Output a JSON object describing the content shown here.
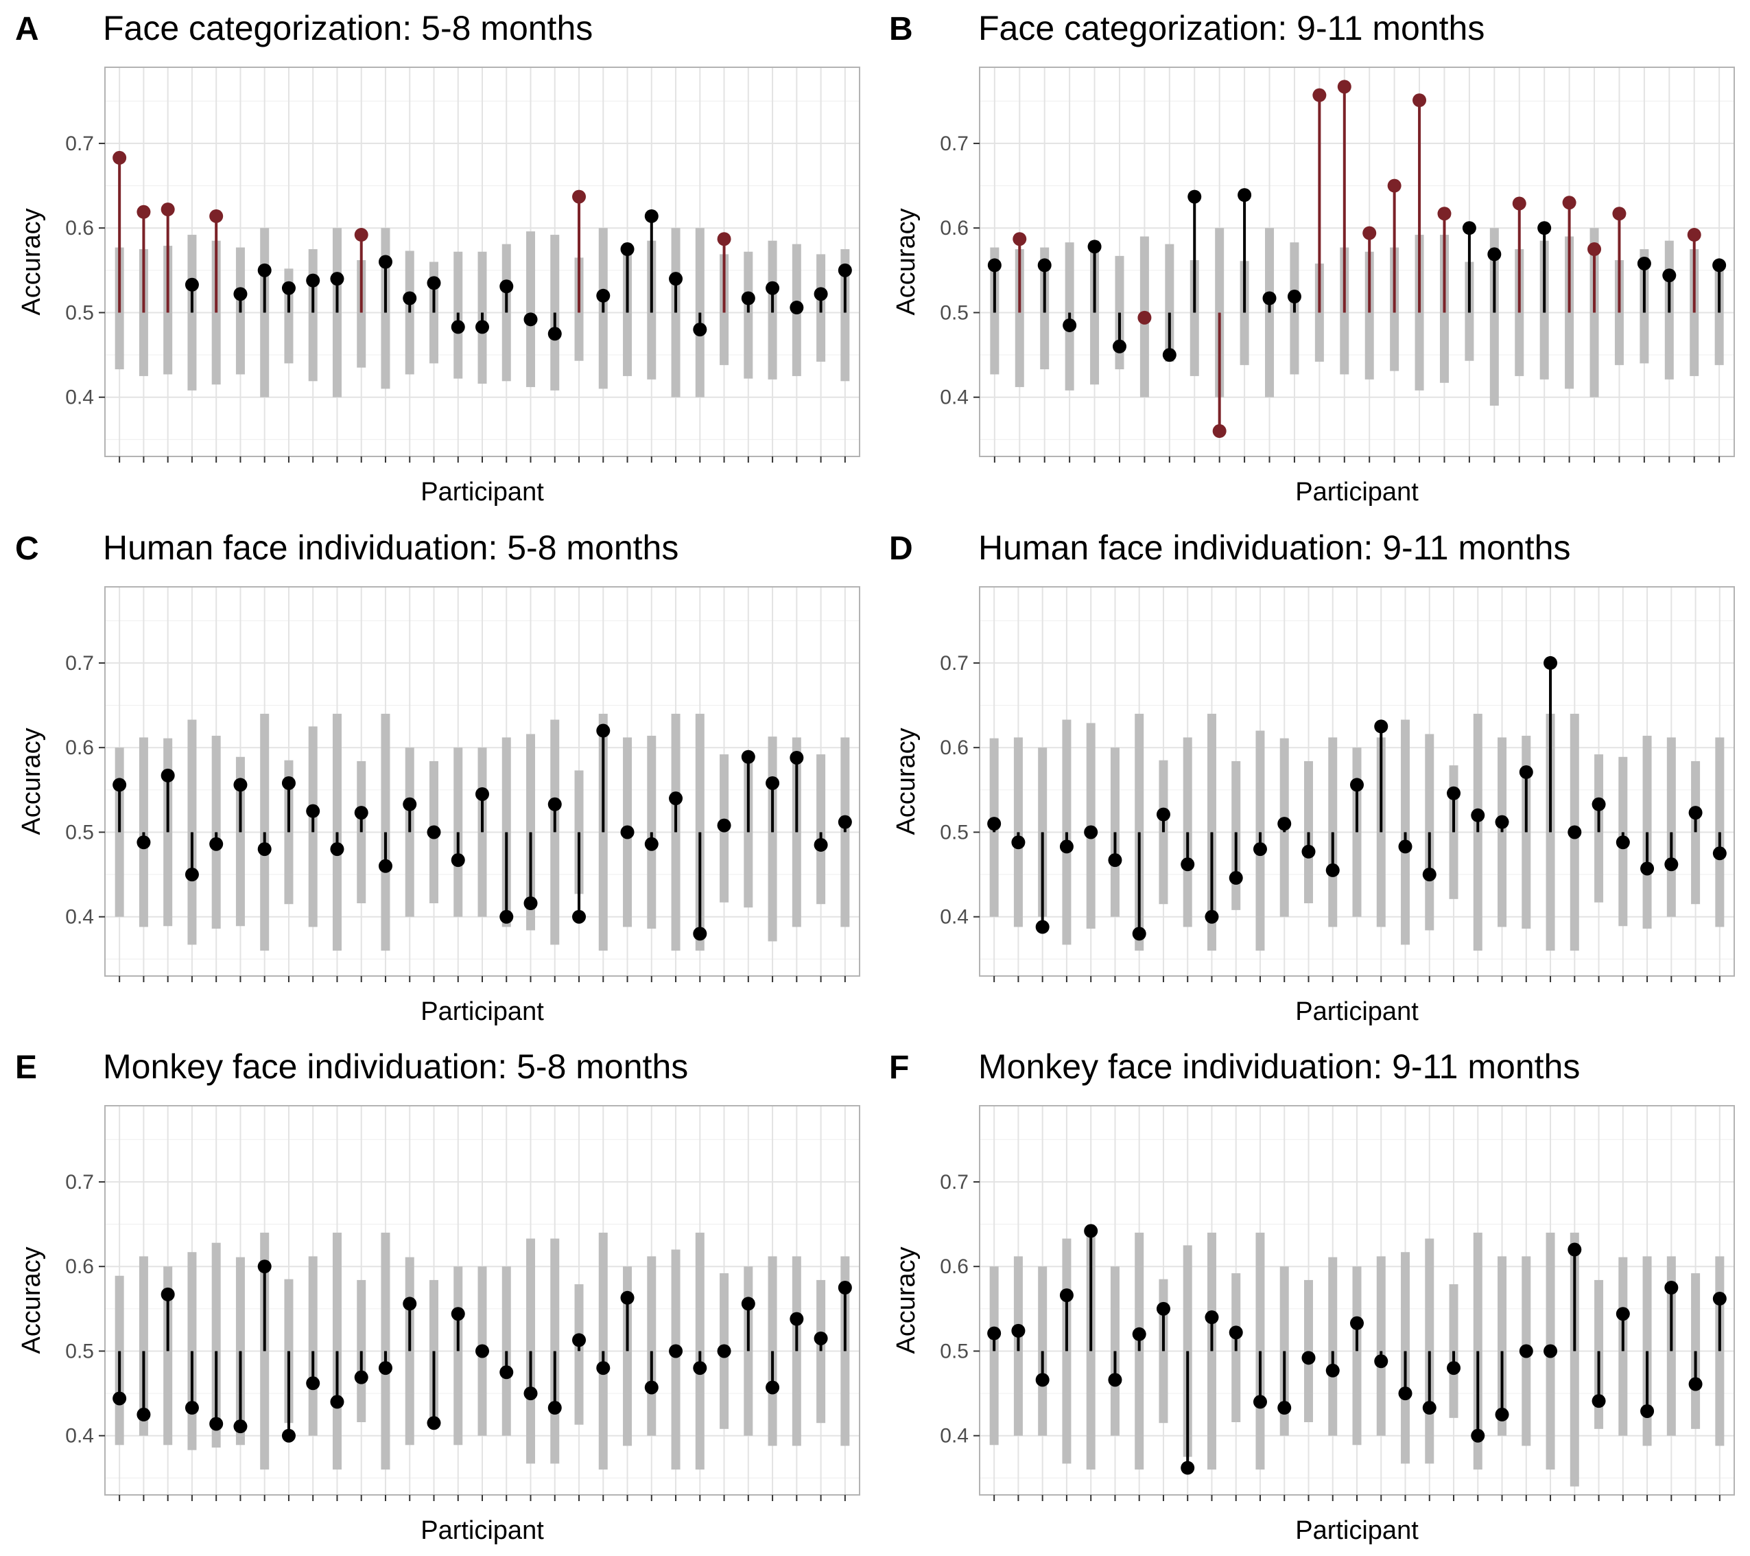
{
  "chart_data": [
    {
      "panel": "A",
      "type": "lollipop",
      "title": "Face categorization: 5-8 months",
      "xlabel": "Participant",
      "ylabel": "Accuracy",
      "baseline": 0.5,
      "ylim": [
        0.33,
        0.79
      ],
      "yticks": [
        0.4,
        0.5,
        0.6,
        0.7
      ],
      "colors": {
        "significant": "#7b2228",
        "non_significant": "#000000",
        "interval": "#bdbdbd"
      },
      "values": [
        0.683,
        0.619,
        0.622,
        0.533,
        0.614,
        0.522,
        0.55,
        0.529,
        0.538,
        0.54,
        0.592,
        0.56,
        0.517,
        0.535,
        0.483,
        0.483,
        0.531,
        0.492,
        0.475,
        0.637,
        0.52,
        0.575,
        0.614,
        0.54,
        0.48,
        0.587,
        0.517,
        0.529,
        0.506,
        0.522,
        0.55
      ],
      "ci_low": [
        0.433,
        0.425,
        0.427,
        0.408,
        0.415,
        0.427,
        0.4,
        0.44,
        0.419,
        0.4,
        0.435,
        0.41,
        0.427,
        0.44,
        0.422,
        0.416,
        0.419,
        0.412,
        0.408,
        0.443,
        0.41,
        0.425,
        0.421,
        0.4,
        0.4,
        0.438,
        0.422,
        0.421,
        0.425,
        0.442,
        0.419
      ],
      "ci_high": [
        0.577,
        0.575,
        0.579,
        0.592,
        0.585,
        0.577,
        0.6,
        0.552,
        0.575,
        0.6,
        0.562,
        0.6,
        0.573,
        0.56,
        0.572,
        0.572,
        0.581,
        0.596,
        0.592,
        0.565,
        0.6,
        0.575,
        0.585,
        0.6,
        0.6,
        0.569,
        0.572,
        0.585,
        0.581,
        0.569,
        0.575
      ],
      "significant": [
        true,
        true,
        true,
        false,
        true,
        false,
        false,
        false,
        false,
        false,
        true,
        false,
        false,
        false,
        false,
        false,
        false,
        false,
        false,
        true,
        false,
        false,
        false,
        false,
        false,
        true,
        false,
        false,
        false,
        false,
        false
      ]
    },
    {
      "panel": "B",
      "type": "lollipop",
      "title": "Face categorization: 9-11 months",
      "xlabel": "Participant",
      "ylabel": "Accuracy",
      "baseline": 0.5,
      "ylim": [
        0.33,
        0.79
      ],
      "yticks": [
        0.4,
        0.5,
        0.6,
        0.7
      ],
      "colors": {
        "significant": "#7b2228",
        "non_significant": "#000000",
        "interval": "#bdbdbd"
      },
      "values": [
        0.556,
        0.587,
        0.556,
        0.485,
        0.578,
        0.46,
        0.494,
        0.45,
        0.637,
        0.36,
        0.639,
        0.517,
        0.519,
        0.757,
        0.767,
        0.594,
        0.65,
        0.751,
        0.617,
        0.6,
        0.569,
        0.629,
        0.6,
        0.63,
        0.575,
        0.617,
        0.558,
        0.544,
        0.592,
        0.556
      ],
      "ci_low": [
        0.427,
        0.412,
        0.433,
        0.408,
        0.415,
        0.433,
        0.4,
        0.442,
        0.425,
        0.4,
        0.438,
        0.4,
        0.427,
        0.442,
        0.427,
        0.421,
        0.431,
        0.408,
        0.417,
        0.443,
        0.39,
        0.425,
        0.421,
        0.41,
        0.4,
        0.438,
        0.44,
        0.421,
        0.425,
        0.438
      ],
      "ci_high": [
        0.577,
        0.575,
        0.577,
        0.583,
        0.585,
        0.567,
        0.59,
        0.581,
        0.562,
        0.6,
        0.561,
        0.6,
        0.583,
        0.558,
        0.577,
        0.572,
        0.577,
        0.592,
        0.592,
        0.56,
        0.6,
        0.575,
        0.585,
        0.59,
        0.6,
        0.562,
        0.575,
        0.585,
        0.575,
        0.562
      ],
      "significant": [
        false,
        true,
        false,
        false,
        false,
        false,
        true,
        false,
        false,
        true,
        false,
        false,
        false,
        true,
        true,
        true,
        true,
        true,
        true,
        false,
        false,
        true,
        false,
        true,
        true,
        true,
        false,
        false,
        true,
        false
      ]
    },
    {
      "panel": "C",
      "type": "lollipop",
      "title": "Human face individuation: 5-8 months",
      "xlabel": "Participant",
      "ylabel": "Accuracy",
      "baseline": 0.5,
      "ylim": [
        0.33,
        0.79
      ],
      "yticks": [
        0.4,
        0.5,
        0.6,
        0.7
      ],
      "colors": {
        "significant": "#7b2228",
        "non_significant": "#000000",
        "interval": "#bdbdbd"
      },
      "values": [
        0.556,
        0.488,
        0.567,
        0.45,
        0.486,
        0.556,
        0.48,
        0.558,
        0.525,
        0.48,
        0.523,
        0.46,
        0.533,
        0.5,
        0.467,
        0.545,
        0.4,
        0.416,
        0.533,
        0.4,
        0.62,
        0.5,
        0.486,
        0.54,
        0.38,
        0.508,
        0.589,
        0.558,
        0.588,
        0.485,
        0.512
      ],
      "ci_low": [
        0.4,
        0.388,
        0.389,
        0.367,
        0.386,
        0.389,
        0.36,
        0.415,
        0.388,
        0.36,
        0.416,
        0.36,
        0.4,
        0.416,
        0.4,
        0.4,
        0.388,
        0.384,
        0.367,
        0.427,
        0.36,
        0.388,
        0.386,
        0.36,
        0.36,
        0.417,
        0.411,
        0.371,
        0.388,
        0.415,
        0.388
      ],
      "ci_high": [
        0.6,
        0.612,
        0.611,
        0.633,
        0.614,
        0.589,
        0.64,
        0.585,
        0.625,
        0.64,
        0.584,
        0.64,
        0.6,
        0.584,
        0.6,
        0.6,
        0.612,
        0.616,
        0.633,
        0.573,
        0.64,
        0.612,
        0.614,
        0.64,
        0.64,
        0.592,
        0.589,
        0.613,
        0.612,
        0.592,
        0.612
      ],
      "significant": [
        false,
        false,
        false,
        false,
        false,
        false,
        false,
        false,
        false,
        false,
        false,
        false,
        false,
        false,
        false,
        false,
        false,
        false,
        false,
        false,
        false,
        false,
        false,
        false,
        false,
        false,
        false,
        false,
        false,
        false,
        false
      ]
    },
    {
      "panel": "D",
      "type": "lollipop",
      "title": "Human face individuation: 9-11 months",
      "xlabel": "Participant",
      "ylabel": "Accuracy",
      "baseline": 0.5,
      "ylim": [
        0.33,
        0.79
      ],
      "yticks": [
        0.4,
        0.5,
        0.6,
        0.7
      ],
      "colors": {
        "significant": "#7b2228",
        "non_significant": "#000000",
        "interval": "#bdbdbd"
      },
      "values": [
        0.51,
        0.488,
        0.388,
        0.483,
        0.5,
        0.467,
        0.38,
        0.521,
        0.462,
        0.4,
        0.446,
        0.48,
        0.51,
        0.477,
        0.455,
        0.556,
        0.625,
        0.483,
        0.45,
        0.546,
        0.52,
        0.512,
        0.571,
        0.7,
        0.5,
        0.533,
        0.488,
        0.457,
        0.462,
        0.523,
        0.475
      ],
      "ci_low": [
        0.4,
        0.388,
        0.4,
        0.367,
        0.386,
        0.4,
        0.36,
        0.415,
        0.388,
        0.36,
        0.408,
        0.36,
        0.4,
        0.416,
        0.388,
        0.4,
        0.388,
        0.367,
        0.384,
        0.421,
        0.36,
        0.388,
        0.386,
        0.36,
        0.36,
        0.417,
        0.389,
        0.386,
        0.4,
        0.415,
        0.388
      ],
      "ci_high": [
        0.611,
        0.612,
        0.6,
        0.633,
        0.629,
        0.6,
        0.64,
        0.585,
        0.612,
        0.64,
        0.584,
        0.62,
        0.611,
        0.584,
        0.612,
        0.6,
        0.612,
        0.633,
        0.616,
        0.579,
        0.64,
        0.612,
        0.614,
        0.64,
        0.64,
        0.592,
        0.589,
        0.614,
        0.612,
        0.584,
        0.612
      ],
      "significant": [
        false,
        false,
        false,
        false,
        false,
        false,
        false,
        false,
        false,
        false,
        false,
        false,
        false,
        false,
        false,
        false,
        false,
        false,
        false,
        false,
        false,
        false,
        false,
        false,
        false,
        false,
        false,
        false,
        false,
        false,
        false
      ]
    },
    {
      "panel": "E",
      "type": "lollipop",
      "title": "Monkey face individuation: 5-8 months",
      "xlabel": "Participant",
      "ylabel": "Accuracy",
      "baseline": 0.5,
      "ylim": [
        0.33,
        0.79
      ],
      "yticks": [
        0.4,
        0.5,
        0.6,
        0.7
      ],
      "colors": {
        "significant": "#7b2228",
        "non_significant": "#000000",
        "interval": "#bdbdbd"
      },
      "values": [
        0.444,
        0.425,
        0.567,
        0.433,
        0.414,
        0.411,
        0.6,
        0.4,
        0.462,
        0.44,
        0.469,
        0.48,
        0.556,
        0.415,
        0.544,
        0.5,
        0.475,
        0.45,
        0.433,
        0.513,
        0.48,
        0.563,
        0.457,
        0.5,
        0.48,
        0.5,
        0.556,
        0.457,
        0.538,
        0.515,
        0.575
      ],
      "ci_low": [
        0.389,
        0.4,
        0.389,
        0.383,
        0.386,
        0.389,
        0.36,
        0.415,
        0.4,
        0.36,
        0.416,
        0.36,
        0.389,
        0.416,
        0.389,
        0.4,
        0.4,
        0.367,
        0.367,
        0.413,
        0.36,
        0.388,
        0.4,
        0.36,
        0.36,
        0.408,
        0.4,
        0.388,
        0.388,
        0.415,
        0.388
      ],
      "ci_high": [
        0.589,
        0.612,
        0.6,
        0.617,
        0.628,
        0.611,
        0.64,
        0.585,
        0.612,
        0.64,
        0.584,
        0.64,
        0.611,
        0.584,
        0.6,
        0.6,
        0.6,
        0.633,
        0.633,
        0.579,
        0.64,
        0.6,
        0.612,
        0.62,
        0.64,
        0.592,
        0.6,
        0.612,
        0.612,
        0.584,
        0.612
      ],
      "significant": [
        false,
        false,
        false,
        false,
        false,
        false,
        false,
        false,
        false,
        false,
        false,
        false,
        false,
        false,
        false,
        false,
        false,
        false,
        false,
        false,
        false,
        false,
        false,
        false,
        false,
        false,
        false,
        false,
        false,
        false,
        false
      ]
    },
    {
      "panel": "F",
      "type": "lollipop",
      "title": "Monkey face individuation: 9-11 months",
      "xlabel": "Participant",
      "ylabel": "Accuracy",
      "baseline": 0.5,
      "ylim": [
        0.33,
        0.79
      ],
      "yticks": [
        0.4,
        0.5,
        0.6,
        0.7
      ],
      "colors": {
        "significant": "#7b2228",
        "non_significant": "#000000",
        "interval": "#bdbdbd"
      },
      "values": [
        0.521,
        0.524,
        0.466,
        0.566,
        0.642,
        0.466,
        0.52,
        0.55,
        0.362,
        0.54,
        0.522,
        0.44,
        0.433,
        0.492,
        0.477,
        0.533,
        0.488,
        0.45,
        0.433,
        0.48,
        0.4,
        0.425,
        0.5,
        0.5,
        0.62,
        0.441,
        0.544,
        0.429,
        0.575,
        0.461,
        0.562
      ],
      "ci_low": [
        0.389,
        0.4,
        0.4,
        0.367,
        0.36,
        0.4,
        0.36,
        0.415,
        0.375,
        0.36,
        0.416,
        0.36,
        0.4,
        0.416,
        0.4,
        0.389,
        0.4,
        0.367,
        0.367,
        0.421,
        0.36,
        0.4,
        0.388,
        0.36,
        0.34,
        0.408,
        0.4,
        0.388,
        0.4,
        0.408,
        0.388
      ],
      "ci_high": [
        0.6,
        0.612,
        0.6,
        0.633,
        0.64,
        0.6,
        0.64,
        0.585,
        0.625,
        0.64,
        0.592,
        0.64,
        0.6,
        0.584,
        0.611,
        0.6,
        0.612,
        0.617,
        0.633,
        0.579,
        0.64,
        0.612,
        0.612,
        0.64,
        0.64,
        0.584,
        0.611,
        0.612,
        0.612,
        0.592,
        0.612
      ],
      "significant": [
        false,
        false,
        false,
        false,
        false,
        false,
        false,
        false,
        false,
        false,
        false,
        false,
        false,
        false,
        false,
        false,
        false,
        false,
        false,
        false,
        false,
        false,
        false,
        false,
        false,
        false,
        false,
        false,
        false,
        false,
        false
      ]
    }
  ]
}
